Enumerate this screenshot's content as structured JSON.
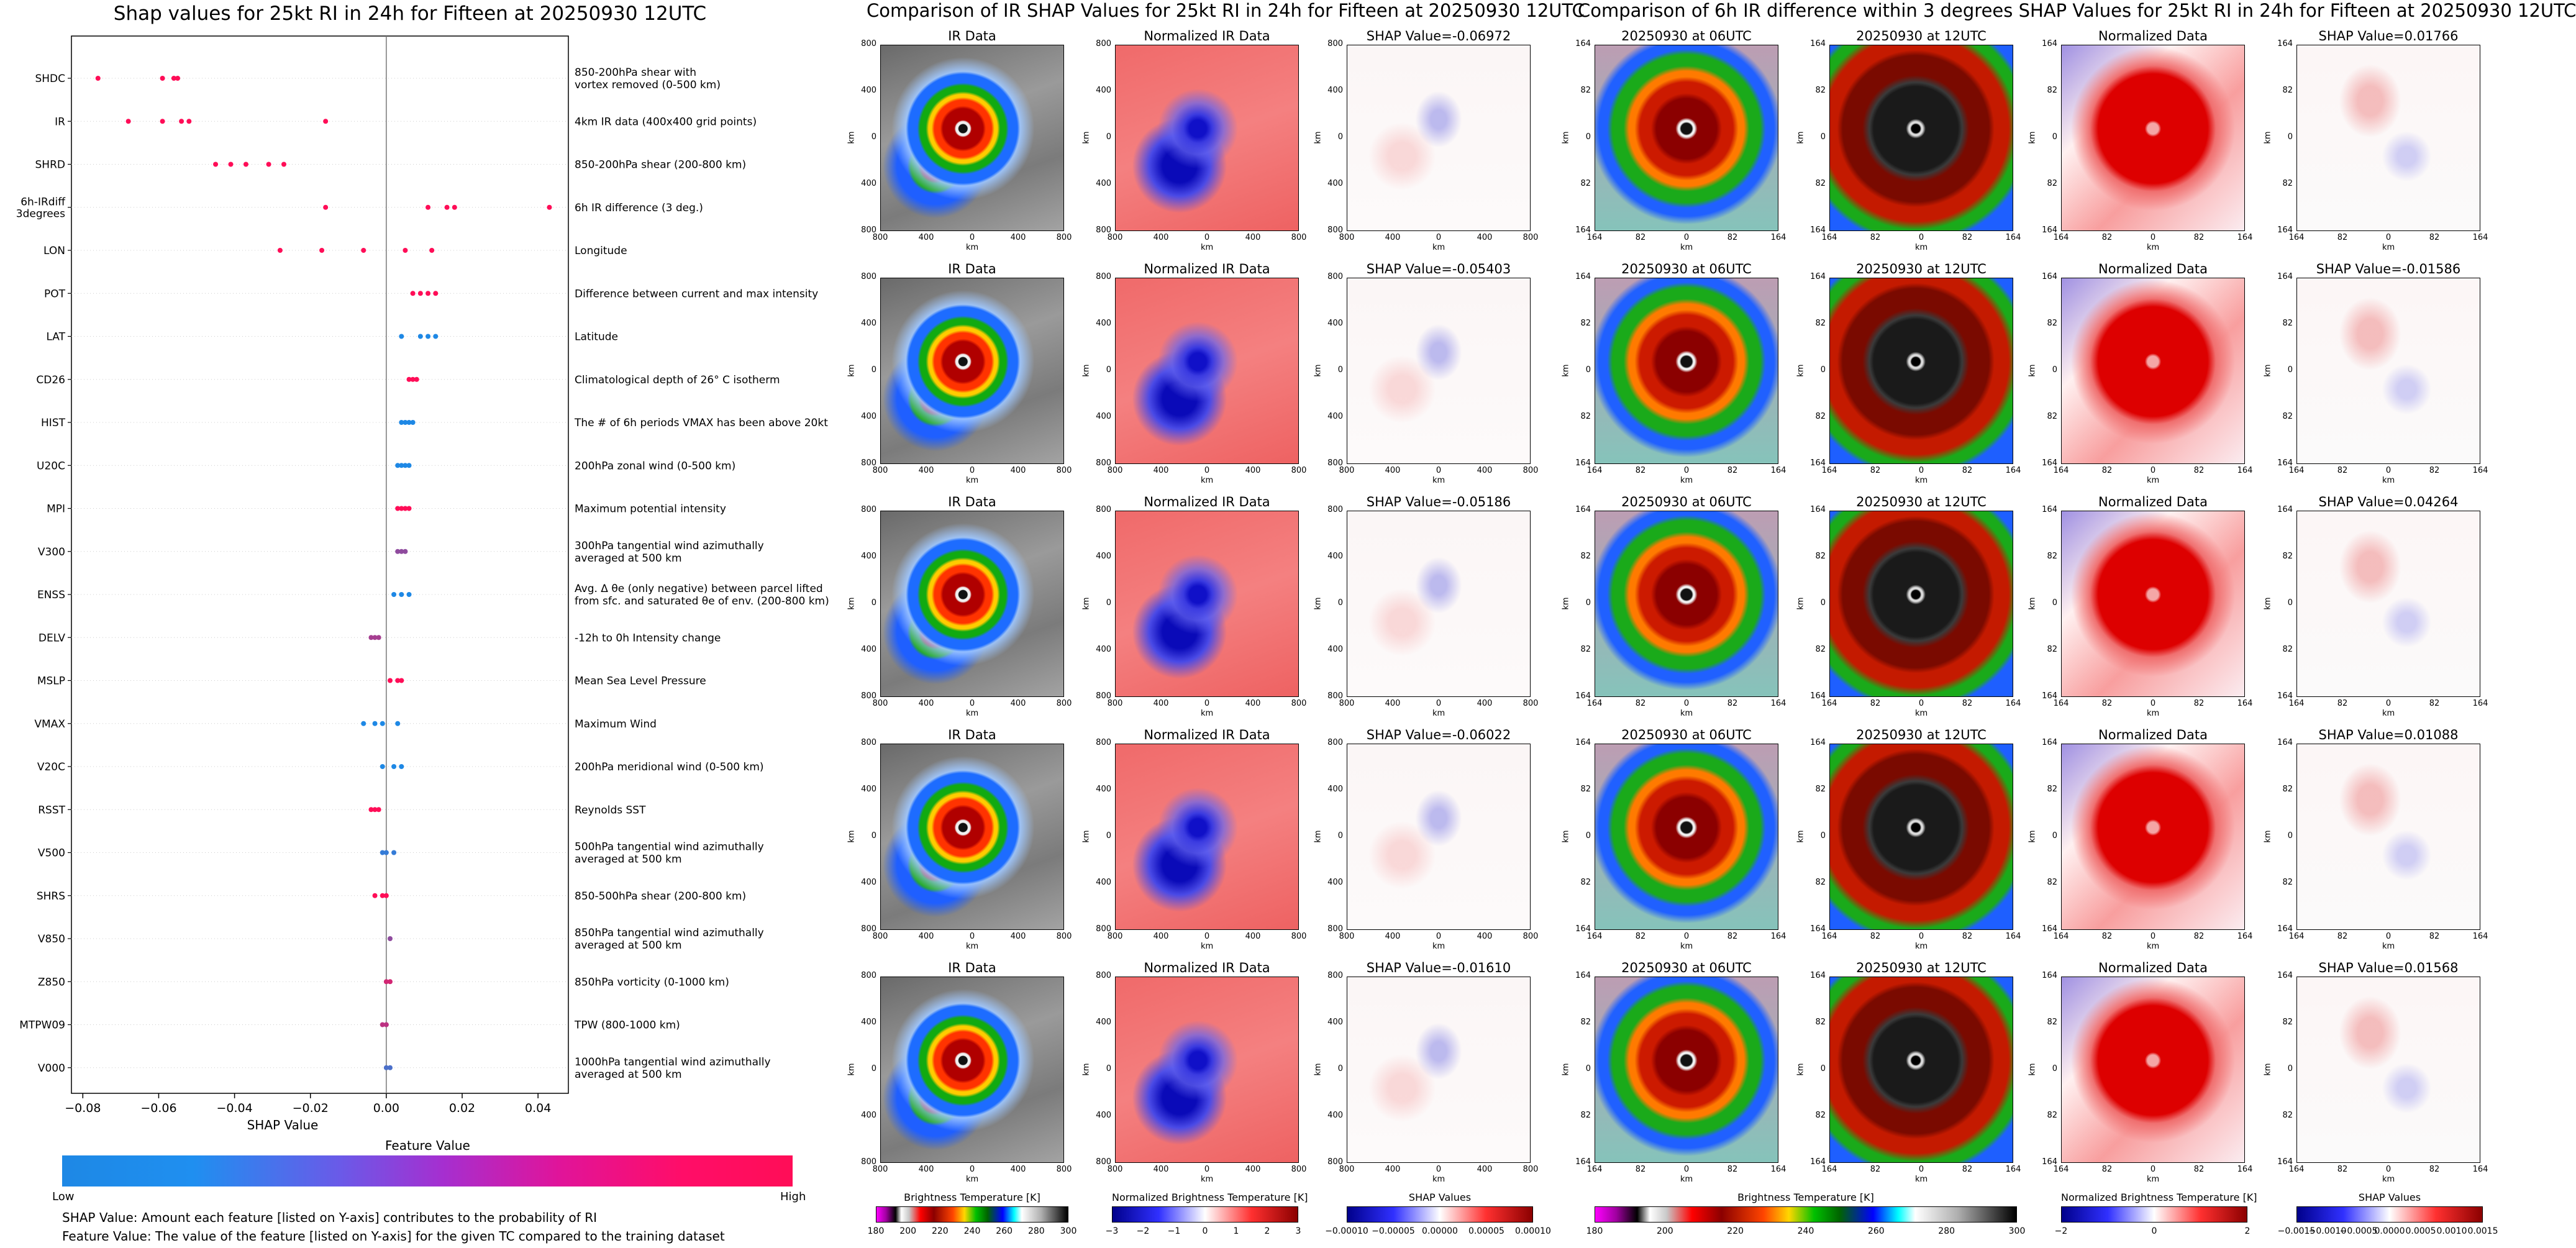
{
  "shap_panel": {
    "title": "Shap values for 25kt RI in 24h for Fifteen at 20250930 12UTC",
    "xlabel": "SHAP Value",
    "feature_value_label": "Feature Value",
    "low_label": "Low",
    "high_label": "High",
    "note1": "SHAP Value: Amount each feature [listed on Y-axis] contributes to the probability of RI",
    "note2": "Feature Value: The value of the feature [listed on Y-axis] for the given TC compared to the training dataset",
    "colors": {
      "low": "#1e88e5",
      "high": "#ff0d57"
    }
  },
  "ir_panel": {
    "title": "Comparison of IR SHAP Values for 25kt RI in 24h for Fifteen at 20250930 12UTC",
    "col_titles": [
      "IR Data",
      "Normalized IR Data"
    ],
    "shap_titles": [
      "SHAP Value=-0.06972",
      "SHAP Value=-0.05403",
      "SHAP Value=-0.05186",
      "SHAP Value=-0.06022",
      "SHAP Value=-0.01610"
    ],
    "axis_label": "km",
    "ticks": [
      "800",
      "400",
      "0",
      "400",
      "800"
    ],
    "cbar1_label": "Brightness Temperature [K]",
    "cbar1_ticks": [
      "180",
      "200",
      "220",
      "240",
      "260",
      "280",
      "300"
    ],
    "cbar2_label": "Normalized Brightness Temperature [K]",
    "cbar2_ticks": [
      "−3",
      "−2",
      "−1",
      "0",
      "1",
      "2",
      "3"
    ],
    "cbar3_label": "SHAP Values",
    "cbar3_ticks": [
      "−0.00010",
      "−0.00005",
      "0.00000",
      "0.00005",
      "0.00010"
    ]
  },
  "diff_panel": {
    "title": "Comparison of 6h IR difference within 3 degrees SHAP Values for 25kt RI in 24h for Fifteen at 20250930 12UTC",
    "col_titles": [
      "20250930 at 06UTC",
      "20250930 at 12UTC",
      "Normalized Data"
    ],
    "shap_titles": [
      "SHAP Value=0.01766",
      "SHAP Value=-0.01586",
      "SHAP Value=0.04264",
      "SHAP Value=0.01088",
      "SHAP Value=0.01568"
    ],
    "axis_label": "km",
    "ticks": [
      "164",
      "82",
      "0",
      "82",
      "164"
    ],
    "cbar1_label": "Brightness Temperature [K]",
    "cbar1_ticks": [
      "180",
      "200",
      "220",
      "240",
      "260",
      "280",
      "300"
    ],
    "cbar2_label": "Normalized Brightness Temperature [K]",
    "cbar2_ticks": [
      "−2",
      "0",
      "2"
    ],
    "cbar3_label": "SHAP Values",
    "cbar3_ticks": [
      "−0.0015",
      "−0.0010",
      "−0.0005",
      "0.0000",
      "0.0005",
      "0.0010",
      "0.0015"
    ]
  },
  "chart_data": {
    "type": "scatter",
    "title": "Shap values for 25kt RI in 24h for Fifteen at 20250930 12UTC",
    "xlabel": "SHAP Value",
    "xlim": [
      -0.083,
      0.048
    ],
    "xticks": [
      "−0.08",
      "−0.06",
      "−0.04",
      "−0.02",
      "0.00",
      "0.02",
      "0.04"
    ],
    "xtick_values": [
      -0.08,
      -0.06,
      -0.04,
      -0.02,
      0.0,
      0.02,
      0.04
    ],
    "features": [
      {
        "name": "SHDC",
        "desc": [
          "850-200hPa shear with",
          "vortex removed (0-500 km)"
        ],
        "values": [
          -0.076,
          -0.059,
          -0.056,
          -0.055
        ],
        "fv": [
          1,
          1,
          1,
          1
        ]
      },
      {
        "name": "IR",
        "desc": [
          "4km IR data (400x400 grid points)"
        ],
        "values": [
          -0.068,
          -0.059,
          -0.054,
          -0.052,
          -0.016
        ],
        "fv": [
          1,
          1,
          1,
          1,
          1
        ]
      },
      {
        "name": "SHRD",
        "desc": [
          "850-200hPa shear (200-800 km)"
        ],
        "values": [
          -0.045,
          -0.041,
          -0.037,
          -0.031,
          -0.027
        ],
        "fv": [
          1,
          1,
          1,
          1,
          1
        ]
      },
      {
        "name": "6h-IRdiff 3degrees",
        "desc": [
          "6h IR difference (3 deg.)"
        ],
        "values": [
          -0.016,
          0.011,
          0.016,
          0.018,
          0.043
        ],
        "fv": [
          1,
          1,
          1,
          1,
          1
        ]
      },
      {
        "name": "LON",
        "desc": [
          "Longitude"
        ],
        "values": [
          -0.028,
          -0.017,
          -0.006,
          0.005,
          0.012
        ],
        "fv": [
          1,
          1,
          1,
          1,
          1
        ]
      },
      {
        "name": "POT",
        "desc": [
          "Difference between current and max intensity"
        ],
        "values": [
          0.007,
          0.009,
          0.011,
          0.013
        ],
        "fv": [
          1,
          1,
          1,
          1
        ]
      },
      {
        "name": "LAT",
        "desc": [
          "Latitude"
        ],
        "values": [
          0.004,
          0.009,
          0.011,
          0.013
        ],
        "fv": [
          0,
          0,
          0,
          0
        ]
      },
      {
        "name": "CD26",
        "desc": [
          "Climatological depth of 26° C isotherm"
        ],
        "values": [
          0.006,
          0.007,
          0.008
        ],
        "fv": [
          1,
          1,
          1
        ]
      },
      {
        "name": "HIST",
        "desc": [
          "The # of 6h periods VMAX has been above 20kt"
        ],
        "values": [
          0.004,
          0.005,
          0.006,
          0.007
        ],
        "fv": [
          0,
          0,
          0,
          0
        ]
      },
      {
        "name": "U20C",
        "desc": [
          "200hPa zonal wind (0-500 km)"
        ],
        "values": [
          0.003,
          0.004,
          0.005,
          0.006
        ],
        "fv": [
          0,
          0,
          0,
          0
        ]
      },
      {
        "name": "MPI",
        "desc": [
          "Maximum potential intensity"
        ],
        "values": [
          0.003,
          0.004,
          0.005,
          0.006
        ],
        "fv": [
          1,
          1,
          1,
          1
        ]
      },
      {
        "name": "V300",
        "desc": [
          "300hPa tangential wind azimuthally",
          "averaged at 500 km"
        ],
        "values": [
          0.003,
          0.004,
          0.005
        ],
        "fv": [
          0.5,
          0.5,
          0.5
        ]
      },
      {
        "name": "ENSS",
        "desc": [
          "Avg. Δ θe (only negative) between parcel lifted",
          "from sfc. and saturated θe of env. (200-800 km)"
        ],
        "values": [
          0.002,
          0.004,
          0.006
        ],
        "fv": [
          0,
          0,
          0
        ]
      },
      {
        "name": "DELV",
        "desc": [
          "-12h to 0h Intensity change"
        ],
        "values": [
          -0.004,
          -0.003,
          -0.002
        ],
        "fv": [
          0.6,
          0.6,
          0.6
        ]
      },
      {
        "name": "MSLP",
        "desc": [
          "Mean Sea Level Pressure"
        ],
        "values": [
          0.001,
          0.003,
          0.004
        ],
        "fv": [
          1,
          1,
          1
        ]
      },
      {
        "name": "VMAX",
        "desc": [
          "Maximum Wind"
        ],
        "values": [
          -0.006,
          -0.003,
          -0.001,
          0.003
        ],
        "fv": [
          0,
          0,
          0,
          0
        ]
      },
      {
        "name": "V20C",
        "desc": [
          "200hPa meridional wind (0-500 km)"
        ],
        "values": [
          -0.001,
          0.002,
          0.004
        ],
        "fv": [
          0,
          0,
          0
        ]
      },
      {
        "name": "RSST",
        "desc": [
          "Reynolds SST"
        ],
        "values": [
          -0.004,
          -0.003,
          -0.002
        ],
        "fv": [
          1,
          1,
          1
        ]
      },
      {
        "name": "V500",
        "desc": [
          "500hPa tangential wind azimuthally",
          "averaged at 500 km"
        ],
        "values": [
          -0.001,
          0.0,
          0.002
        ],
        "fv": [
          0.1,
          0.1,
          0.1
        ]
      },
      {
        "name": "SHRS",
        "desc": [
          "850-500hPa shear (200-800 km)"
        ],
        "values": [
          -0.003,
          -0.001,
          0.0
        ],
        "fv": [
          1,
          1,
          1
        ]
      },
      {
        "name": "V850",
        "desc": [
          "850hPa tangential wind azimuthally",
          "averaged at 500 km"
        ],
        "values": [
          0.001
        ],
        "fv": [
          0.5
        ]
      },
      {
        "name": "Z850",
        "desc": [
          "850hPa vorticity (0-1000 km)"
        ],
        "values": [
          0.0,
          0.001
        ],
        "fv": [
          0.8,
          0.8
        ]
      },
      {
        "name": "MTPW09",
        "desc": [
          "TPW (800-1000 km)"
        ],
        "values": [
          -0.001,
          0.0
        ],
        "fv": [
          0.7,
          0.7
        ]
      },
      {
        "name": "V000",
        "desc": [
          "1000hPa tangential wind azimuthally",
          "averaged at 500 km"
        ],
        "values": [
          0.0,
          0.001
        ],
        "fv": [
          0.2,
          0.2
        ]
      }
    ]
  }
}
